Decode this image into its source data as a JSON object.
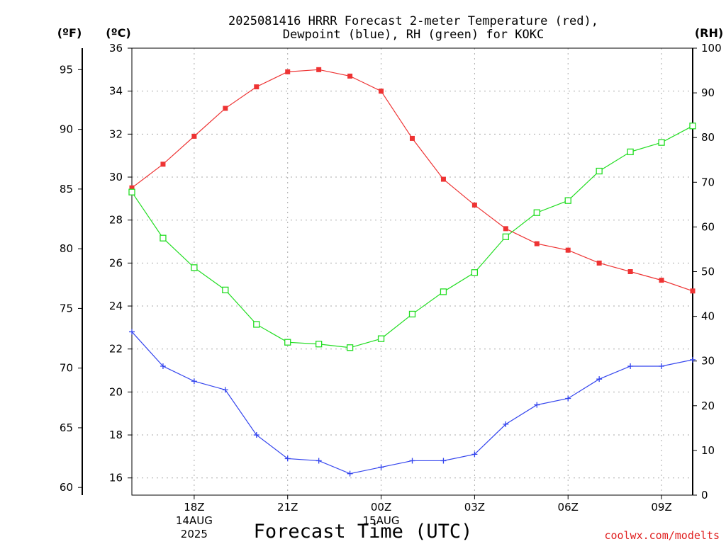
{
  "chart_data": {
    "type": "line",
    "title": [
      "2025081416 HRRR Forecast 2-meter Temperature (red),",
      "Dewpoint (blue), RH (green) for KOKC"
    ],
    "xlabel": "Forecast Time (UTC)",
    "credit": "coolwx.com/modelts",
    "units": {
      "fahrenheit": "(ºF)",
      "celsius": "(ºC)",
      "rh": "(RH)"
    },
    "x": [
      "16Z",
      "17Z",
      "18Z",
      "19Z",
      "20Z",
      "21Z",
      "22Z",
      "23Z",
      "00Z",
      "01Z",
      "02Z",
      "03Z",
      "04Z",
      "05Z",
      "06Z",
      "07Z",
      "08Z",
      "09Z",
      "10Z"
    ],
    "x_ticks": [
      {
        "label": "18Z",
        "sub": [
          "14AUG",
          "2025"
        ]
      },
      {
        "label": "21Z",
        "sub": []
      },
      {
        "label": "00Z",
        "sub": [
          "15AUG"
        ]
      },
      {
        "label": "03Z",
        "sub": []
      },
      {
        "label": "06Z",
        "sub": []
      },
      {
        "label": "09Z",
        "sub": []
      }
    ],
    "axes": {
      "celsius": {
        "range": [
          15.2,
          36
        ],
        "ticks": [
          16,
          18,
          20,
          22,
          24,
          26,
          28,
          30,
          32,
          34,
          36
        ]
      },
      "fahrenheit": {
        "range": [
          59.36,
          96.8
        ],
        "ticks": [
          60,
          65,
          70,
          75,
          80,
          85,
          90,
          95
        ]
      },
      "rh": {
        "range": [
          0,
          100
        ],
        "ticks": [
          0,
          10,
          20,
          30,
          40,
          50,
          60,
          70,
          80,
          90,
          100
        ]
      }
    },
    "grid": true,
    "series": [
      {
        "name": "Temperature",
        "axis": "celsius",
        "color": "#ee3333",
        "marker": "filled-square",
        "values": [
          29.5,
          30.6,
          31.9,
          33.2,
          34.2,
          34.9,
          35.0,
          34.7,
          34.0,
          31.8,
          29.9,
          28.7,
          27.6,
          26.9,
          26.6,
          26.0,
          25.6,
          25.2,
          24.7
        ]
      },
      {
        "name": "Dewpoint",
        "axis": "celsius",
        "color": "#3344ee",
        "marker": "plus",
        "values": [
          22.8,
          21.2,
          20.5,
          20.1,
          18.0,
          16.9,
          16.8,
          16.2,
          16.5,
          16.8,
          16.8,
          17.1,
          18.5,
          19.4,
          19.7,
          20.6,
          21.2,
          21.2,
          21.5
        ]
      },
      {
        "name": "RH",
        "axis": "rh",
        "color": "#22dd22",
        "marker": "open-square",
        "values": [
          67.8,
          57.5,
          50.9,
          45.9,
          38.2,
          34.2,
          33.8,
          33.0,
          35.0,
          40.5,
          45.5,
          49.8,
          57.8,
          63.2,
          65.9,
          72.5,
          76.8,
          78.9,
          82.6
        ]
      }
    ]
  }
}
